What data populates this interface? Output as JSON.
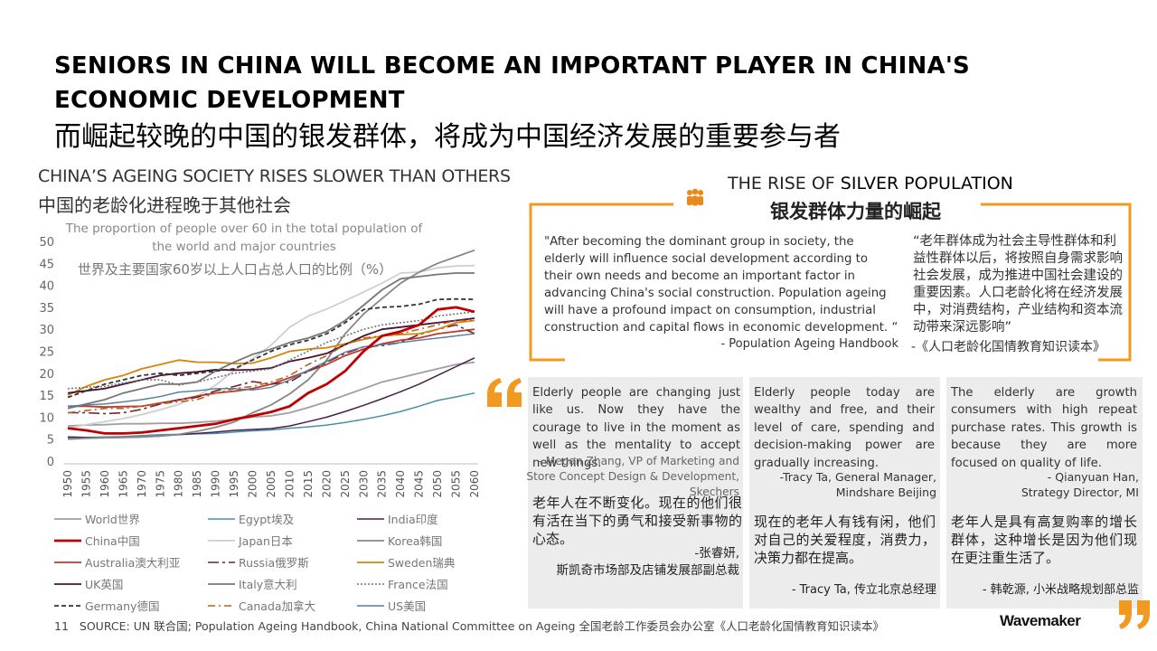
{
  "title_en": "SENIORS IN CHINA WILL BECOME AN IMPORTANT PLAYER IN CHINA'S ECONOMIC DEVELOPMENT",
  "title_cn": "而崛起较晚的中国的银发群体，将成为中国经济发展的重要参与者",
  "left_heading_en": "CHINA’S AGEING SOCIETY RISES SLOWER THAN OTHERS",
  "left_heading_cn": "中国的老龄化进程晚于其他社会",
  "chart_data": {
    "type": "line",
    "title": "The proportion of people over 60 in the total population of the world and major countries",
    "title_cn": "世界及主要国家60岁以上人口占总人口的比例（%）",
    "x": [
      1950,
      1955,
      1960,
      1965,
      1970,
      1975,
      1980,
      1985,
      1990,
      1995,
      2000,
      2005,
      2010,
      2015,
      2020,
      2025,
      2030,
      2035,
      2040,
      2045,
      2050,
      2055,
      2060
    ],
    "ylim": [
      0,
      50
    ],
    "yticks": [
      0,
      5,
      10,
      15,
      20,
      25,
      30,
      35,
      40,
      45,
      50
    ],
    "series": [
      {
        "name": "World世界",
        "color": "#a0a0a0",
        "dash": "",
        "width": 1.8,
        "values": [
          8,
          8.2,
          8.3,
          8.5,
          8.5,
          8.6,
          8.6,
          8.8,
          9.1,
          9.5,
          10,
          10.3,
          11,
          12.2,
          13.5,
          15,
          16.5,
          18,
          19,
          20,
          21,
          22,
          22.5
        ]
      },
      {
        "name": "Egypt埃及",
        "color": "#4a90a8",
        "dash": "",
        "width": 1.5,
        "values": [
          5.2,
          5.4,
          5.5,
          5.6,
          5.8,
          6,
          6.1,
          6.2,
          6.3,
          6.6,
          6.9,
          7.1,
          7.5,
          7.8,
          8.2,
          8.8,
          9.5,
          10.3,
          11.3,
          12.5,
          13.8,
          14.6,
          15.5
        ]
      },
      {
        "name": "India印度",
        "color": "#4a1f4d",
        "dash": "",
        "width": 1.5,
        "values": [
          5.5,
          5.4,
          5.3,
          5.4,
          5.5,
          5.7,
          6,
          6.3,
          6.6,
          7,
          7.2,
          7.4,
          8,
          9,
          10,
          11.3,
          12.7,
          14.2,
          15.8,
          17.5,
          19.5,
          21.5,
          23.5
        ]
      },
      {
        "name": "China中国",
        "color": "#c00000",
        "dash": "",
        "width": 2.8,
        "values": [
          7.5,
          7,
          6.3,
          6.3,
          6.5,
          7,
          7.5,
          8,
          8.5,
          9.5,
          10.3,
          11.2,
          12.5,
          15.5,
          17.5,
          20.5,
          25,
          28.5,
          29.5,
          31,
          34.5,
          35,
          34
        ]
      },
      {
        "name": "Japan日本",
        "color": "#cfcfcf",
        "dash": "",
        "width": 1.8,
        "values": [
          7.5,
          8.3,
          9,
          9.7,
          10.6,
          11.7,
          12.9,
          14.8,
          17.3,
          20.7,
          23.3,
          26.4,
          30.5,
          33,
          34.6,
          36.5,
          38.5,
          40.5,
          42.8,
          43,
          44,
          44.4,
          44.5
        ]
      },
      {
        "name": "Korea韩国",
        "color": "#888888",
        "dash": "",
        "width": 1.8,
        "values": [
          5,
          5.2,
          5.3,
          5.4,
          5.5,
          5.7,
          6.1,
          6.8,
          7.7,
          8.9,
          11,
          12.8,
          15.3,
          18.5,
          23,
          29,
          33.5,
          37,
          40.5,
          43,
          45,
          46.5,
          48
        ]
      },
      {
        "name": "Australia澳大利亚",
        "color": "#c0392b",
        "dash": "",
        "width": 1.8,
        "values": [
          12.5,
          12.5,
          12.3,
          12.4,
          12.5,
          13.2,
          13.9,
          14.8,
          15.5,
          15.9,
          16.5,
          17.5,
          19,
          20.5,
          22,
          24,
          25.5,
          26.7,
          27.5,
          28,
          29,
          29.5,
          30
        ]
      },
      {
        "name": "Russia俄罗斯",
        "color": "#7a1f2b",
        "dash": "12,4,3,4",
        "width": 1.6,
        "values": [
          11,
          11,
          10.8,
          11,
          11.8,
          13,
          14,
          14.5,
          16,
          17,
          18.1,
          17.5,
          18,
          20.5,
          22.5,
          24.5,
          26,
          26.3,
          27,
          28.8,
          30,
          31,
          29
        ]
      },
      {
        "name": "Sweden瑞典",
        "color": "#d4850a",
        "dash": "",
        "width": 1.8,
        "values": [
          15,
          17,
          18.5,
          19.5,
          21,
          22,
          23,
          22.5,
          22.5,
          22.2,
          22.3,
          23.5,
          25,
          25.5,
          25.8,
          26.7,
          27.7,
          28.5,
          28.8,
          29,
          30,
          31.5,
          32
        ]
      },
      {
        "name": "UK英国",
        "color": "#4a1236",
        "dash": "",
        "width": 1.8,
        "values": [
          15.5,
          16,
          16.5,
          17.5,
          18.5,
          19.5,
          20,
          20.3,
          20.8,
          20.7,
          20.8,
          21.2,
          22.7,
          23.5,
          24.5,
          26.5,
          28.5,
          30,
          30.5,
          31,
          31.5,
          32,
          32.5
        ]
      },
      {
        "name": "Italy意大利",
        "color": "#777777",
        "dash": "",
        "width": 1.8,
        "values": [
          12,
          13,
          14,
          15.5,
          16.5,
          17.5,
          17.5,
          18,
          20.5,
          22.5,
          24.3,
          25.5,
          27,
          28,
          29.5,
          32,
          35.5,
          39,
          41.5,
          42,
          42.5,
          42.8,
          42.8
        ]
      },
      {
        "name": "France法国",
        "color": "#777777",
        "dash": "2,2",
        "width": 1.6,
        "values": [
          16.5,
          16.8,
          17,
          17.8,
          18.5,
          18.5,
          17.3,
          18,
          19,
          20,
          20.5,
          21,
          23,
          25,
          27,
          28.5,
          30,
          31,
          31.5,
          32,
          33,
          33.5,
          34
        ]
      },
      {
        "name": "Germany德国",
        "color": "#333333",
        "dash": "5,3",
        "width": 1.8,
        "values": [
          14.5,
          16,
          17.5,
          18.5,
          19.5,
          20,
          19.5,
          20,
          20.5,
          21,
          23,
          25,
          26.5,
          27.5,
          29,
          31.5,
          34.5,
          35,
          35.2,
          35.7,
          36.8,
          36.9,
          36.8
        ]
      },
      {
        "name": "Canada加拿大",
        "color": "#b5651d",
        "dash": "8,4,2,4",
        "width": 1.6,
        "values": [
          11,
          11.5,
          12,
          12,
          12.5,
          13,
          13.5,
          14,
          15.5,
          16.5,
          17,
          18,
          19.5,
          22,
          24,
          26.5,
          28,
          28.5,
          29,
          30,
          31,
          32,
          32
        ]
      },
      {
        "name": "US美国",
        "color": "#4f7ea0",
        "dash": "",
        "width": 1.4,
        "values": [
          12.5,
          12.8,
          13,
          13.5,
          14,
          14.7,
          15.7,
          16,
          16.5,
          16.5,
          16.2,
          16.8,
          18.5,
          20.7,
          22.7,
          24.8,
          26,
          26.5,
          27,
          27.5,
          28,
          28.5,
          29
        ]
      }
    ]
  },
  "rise": {
    "heading_prefix": "THE RISE OF",
    "heading_highlight": "SILVER POPULATION",
    "heading_cn": "银发群体力量的崛起",
    "quote_en": "\"After becoming the dominant group in society, the elderly will influence social development according to their own needs and become an important factor in advancing China's social construction. Population ageing will have a profound impact on consumption, industrial construction and capital flows in economic development. “",
    "quote_en_source": "- Population Ageing Handbook",
    "quote_cn": "“老年群体成为社会主导性群体和利益性群体以后，将按照自身需求影响社会发展，成为推进中国社会建设的重要因素。人口老龄化将在经济发展中，对消费结构，产业结构和资本流动带来深远影响”",
    "quote_cn_source": "-《人口老龄化国情教育知识读本》"
  },
  "cards": [
    {
      "en": "Elderly people are changing just like us. Now they have the courage to live in the moment as well as the mentality to accept new things.",
      "en_source": "- Megan Zhang, VP of Marketing and Store Concept Design & Development, Skechers",
      "cn": "老年人在不断变化。现在的他们很有活在当下的勇气和接受新事物的心态。",
      "cn_source": "-张睿妍,\n斯凯奇市场部及店铺发展部副总裁"
    },
    {
      "en": "Elderly people today are wealthy and free, and their level of care, spending and decision-making power are gradually increasing.",
      "en_source": "-Tracy Ta, General Manager,\nMindshare Beijing",
      "cn": "现在的老年人有钱有闲，他们对自己的关爱程度，消费力，决策力都在提高。",
      "cn_source": "- Tracy Ta, 传立北京总经理"
    },
    {
      "en": "The elderly are growth consumers with high repeat purchase rates. This growth is because they are more focused on quality of life.",
      "en_source": "- Qianyuan Han,\nStrategy Director, MI",
      "cn": "老年人是具有高复购率的增长群体，这种增长是因为他们现在更注重生活了。",
      "cn_source": "- 韩乾源, 小米战略规划部总监"
    }
  ],
  "footer": {
    "page_number": "11",
    "source": "SOURCE: UN 联合国; Population Ageing Handbook, China National Committee on Ageing 全国老龄工作委员会办公室《人口老龄化国情教育知识读本》"
  },
  "logo": "Wavemaker",
  "colors": {
    "accent": "#f29a1f",
    "card_bg": "#ececec",
    "china": "#c00000"
  }
}
